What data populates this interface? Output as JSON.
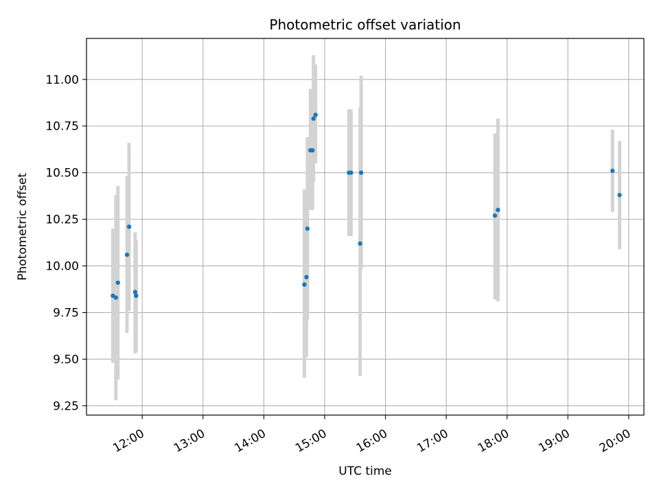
{
  "chart_data": {
    "type": "scatter",
    "title": "Photometric offset variation",
    "xlabel": "UTC time",
    "ylabel": "Photometric offset",
    "x_axis_type": "time",
    "xlim": [
      "11:05",
      "20:15"
    ],
    "ylim": [
      9.2,
      11.22
    ],
    "x_ticks": [
      "12:00",
      "13:00",
      "14:00",
      "15:00",
      "16:00",
      "17:00",
      "18:00",
      "19:00",
      "20:00"
    ],
    "y_ticks": [
      9.25,
      9.5,
      9.75,
      10.0,
      10.25,
      10.5,
      10.75,
      11.0
    ],
    "y_tick_labels": [
      "9.25",
      "9.50",
      "9.75",
      "10.00",
      "10.25",
      "10.50",
      "10.75",
      "11.00"
    ],
    "grid": true,
    "marker_color": "#1f77b4",
    "errorbar_color": "#d3d3d3",
    "points": [
      {
        "time": "11:31",
        "value": 9.84,
        "low": 9.48,
        "high": 10.2
      },
      {
        "time": "11:34",
        "value": 9.83,
        "low": 9.28,
        "high": 10.38
      },
      {
        "time": "11:36",
        "value": 9.91,
        "low": 9.39,
        "high": 10.43
      },
      {
        "time": "11:45",
        "value": 10.06,
        "low": 9.64,
        "high": 10.48
      },
      {
        "time": "11:47",
        "value": 10.21,
        "low": 9.76,
        "high": 10.66
      },
      {
        "time": "11:53",
        "value": 9.86,
        "low": 9.53,
        "high": 10.18
      },
      {
        "time": "11:54",
        "value": 9.84,
        "low": 9.54,
        "high": 10.14
      },
      {
        "time": "14:40",
        "value": 9.9,
        "low": 9.4,
        "high": 10.41
      },
      {
        "time": "14:42",
        "value": 9.94,
        "low": 9.51,
        "high": 10.37
      },
      {
        "time": "14:43",
        "value": 10.2,
        "low": 9.71,
        "high": 10.69
      },
      {
        "time": "14:46",
        "value": 10.62,
        "low": 10.3,
        "high": 10.95
      },
      {
        "time": "14:48",
        "value": 10.62,
        "low": 10.3,
        "high": 10.94
      },
      {
        "time": "14:49",
        "value": 10.79,
        "low": 10.45,
        "high": 11.13
      },
      {
        "time": "14:51",
        "value": 10.81,
        "low": 10.55,
        "high": 11.08
      },
      {
        "time": "15:24",
        "value": 10.5,
        "low": 10.16,
        "high": 10.84
      },
      {
        "time": "15:26",
        "value": 10.5,
        "low": 10.16,
        "high": 10.84
      },
      {
        "time": "15:35",
        "value": 10.12,
        "low": 9.41,
        "high": 10.85
      },
      {
        "time": "15:36",
        "value": 10.5,
        "low": 9.98,
        "high": 11.02
      },
      {
        "time": "17:48",
        "value": 10.27,
        "low": 9.82,
        "high": 10.71
      },
      {
        "time": "17:51",
        "value": 10.3,
        "low": 9.81,
        "high": 10.79
      },
      {
        "time": "19:44",
        "value": 10.51,
        "low": 10.29,
        "high": 10.73
      },
      {
        "time": "19:51",
        "value": 10.38,
        "low": 10.09,
        "high": 10.67
      }
    ]
  }
}
